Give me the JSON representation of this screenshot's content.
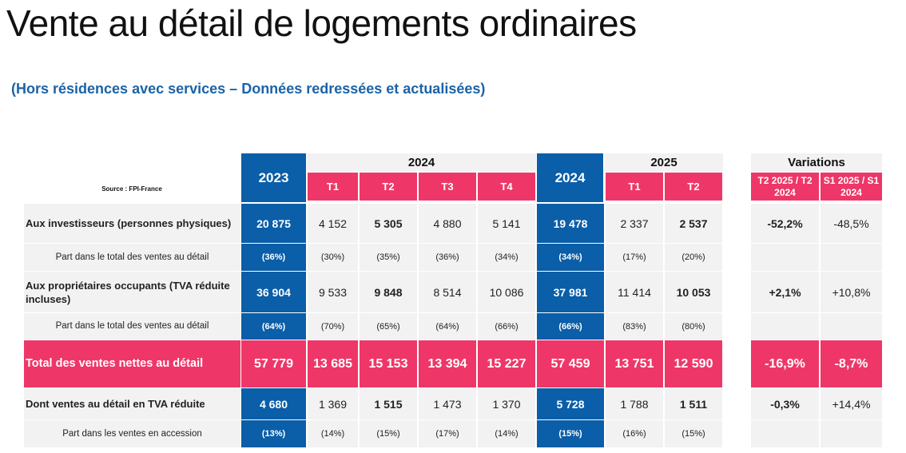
{
  "title": "Vente au détail de logements ordinaires",
  "subtitle": "(Hors résidences avec services – Données redressées et actualisées)",
  "source": "Source : FPI-France",
  "header": {
    "year_2023": "2023",
    "group_2024": "2024",
    "quarters_2024": [
      "T1",
      "T2",
      "T3",
      "T4"
    ],
    "year_2024": "2024",
    "group_2025": "2025",
    "quarters_2025": [
      "T1",
      "T2"
    ],
    "variations": "Variations",
    "var_q": "T2 2025 / T2 2024",
    "var_s": "S1 2025 / S1 2024"
  },
  "rows": [
    {
      "label": "Aux investisseurs (personnes physiques)",
      "y2023": "20 875",
      "q2024": [
        "4 152",
        "5 305",
        "4 880",
        "5 141"
      ],
      "y2024": "19 478",
      "q2025": [
        "2 337",
        "2 537"
      ],
      "var_q": "-52,2%",
      "var_s": "-48,5%"
    },
    {
      "label": "Part dans le total des ventes au détail",
      "y2023": "(36%)",
      "q2024": [
        "(30%)",
        "(35%)",
        "(36%)",
        "(34%)"
      ],
      "y2024": "(34%)",
      "q2025": [
        "(17%)",
        "(20%)"
      ],
      "var_q": "",
      "var_s": ""
    },
    {
      "label": "Aux propriétaires occupants (TVA réduite incluses)",
      "y2023": "36 904",
      "q2024": [
        "9 533",
        "9 848",
        "8 514",
        "10 086"
      ],
      "y2024": "37 981",
      "q2025": [
        "11 414",
        "10 053"
      ],
      "var_q": "+2,1%",
      "var_s": "+10,8%"
    },
    {
      "label": "Part dans le total des ventes au détail",
      "y2023": "(64%)",
      "q2024": [
        "(70%)",
        "(65%)",
        "(64%)",
        "(66%)"
      ],
      "y2024": "(66%)",
      "q2025": [
        "(83%)",
        "(80%)"
      ],
      "var_q": "",
      "var_s": ""
    },
    {
      "label": "Total des ventes nettes au détail",
      "y2023": "57 779",
      "q2024": [
        "13 685",
        "15 153",
        "13 394",
        "15 227"
      ],
      "y2024": "57 459",
      "q2025": [
        "13 751",
        "12 590"
      ],
      "var_q": "-16,9%",
      "var_s": "-8,7%"
    },
    {
      "label": "Dont ventes au détail en TVA réduite",
      "y2023": "4 680",
      "q2024": [
        "1 369",
        "1 515",
        "1 473",
        "1 370"
      ],
      "y2024": "5 728",
      "q2025": [
        "1 788",
        "1 511"
      ],
      "var_q": "-0,3%",
      "var_s": "+14,4%"
    },
    {
      "label": "Part dans les ventes en accession",
      "y2023": "(13%)",
      "q2024": [
        "(14%)",
        "(15%)",
        "(17%)",
        "(14%)"
      ],
      "y2024": "(15%)",
      "q2025": [
        "(16%)",
        "(15%)"
      ],
      "var_q": "",
      "var_s": ""
    }
  ],
  "colors": {
    "blue": "#0b5ea8",
    "pink": "#ee3768",
    "gray": "#f2f2f2",
    "subtitle_blue": "#1a63a8"
  }
}
